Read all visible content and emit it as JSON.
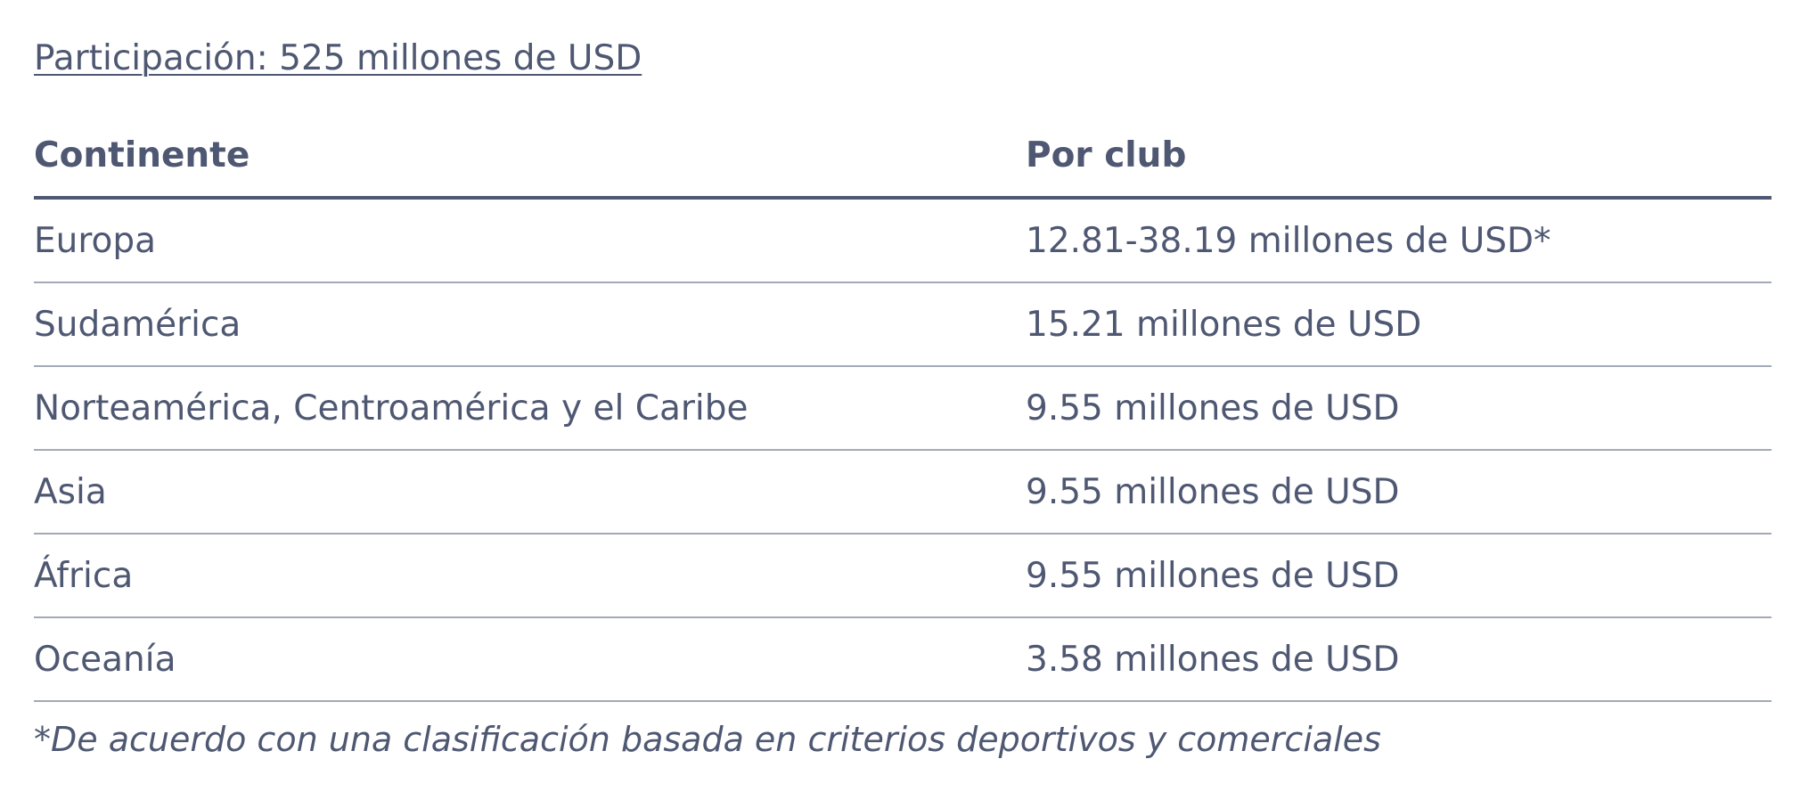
{
  "heading": "Participación: 525 millones de USD",
  "table": {
    "headers": {
      "continent": "Continente",
      "per_club": "Por club"
    },
    "rows": [
      {
        "continent": "Europa",
        "per_club": "12.81-38.19 millones de USD*"
      },
      {
        "continent": "Sudamérica",
        "per_club": "15.21 millones de USD"
      },
      {
        "continent": "Norteamérica, Centroamérica y el Caribe",
        "per_club": "9.55 millones de USD"
      },
      {
        "continent": "Asia",
        "per_club": "9.55 millones de USD"
      },
      {
        "continent": "África",
        "per_club": "9.55 millones de USD"
      },
      {
        "continent": "Oceanía",
        "per_club": "3.58 millones de USD"
      }
    ]
  },
  "footnote": "*De acuerdo con una clasificación basada en criterios deportivos y comerciales"
}
